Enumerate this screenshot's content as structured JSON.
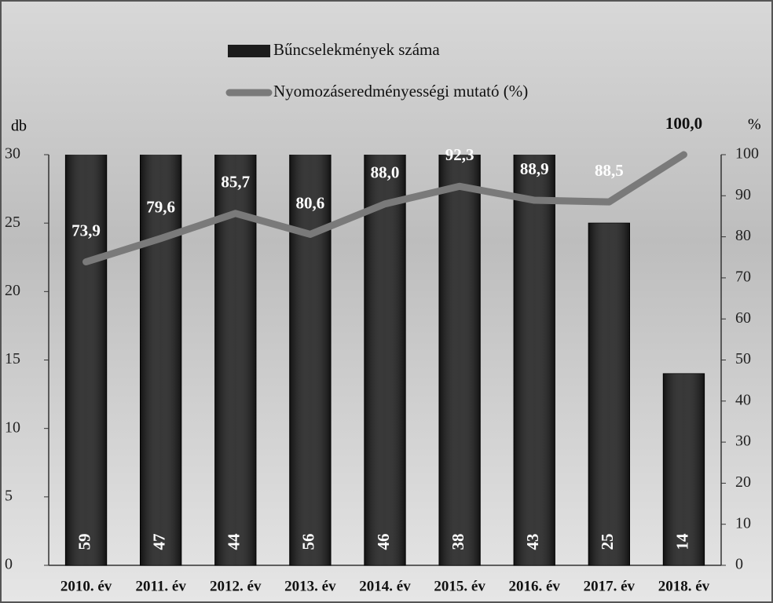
{
  "chart_data": {
    "type": "bar",
    "categories": [
      "2010. év",
      "2011. év",
      "2012. év",
      "2013. év",
      "2014. év",
      "2015. év",
      "2016. év",
      "2017. év",
      "2018. év"
    ],
    "series": [
      {
        "name": "Bűncselekmények száma",
        "type": "bar",
        "color": "#1c1c1c",
        "values": [
          59,
          47,
          44,
          56,
          46,
          38,
          43,
          25,
          14
        ]
      },
      {
        "name": "Nyomozáseredményességi mutató (%)",
        "type": "line",
        "axis": "y2",
        "color": "#7a7a7a",
        "values": [
          73.9,
          79.6,
          85.7,
          80.6,
          88.0,
          92.3,
          88.9,
          88.5,
          100.0
        ],
        "value_labels": [
          "73,9",
          "79,6",
          "85,7",
          "80,6",
          "88,0",
          "92,3",
          "88,9",
          "88,5",
          "100,0"
        ]
      }
    ],
    "y_label": "db",
    "y2_label": "%",
    "ylim": [
      0,
      30
    ],
    "yticks": [
      0,
      5,
      10,
      15,
      20,
      25,
      30
    ],
    "y2lim": [
      0,
      100
    ],
    "y2ticks": [
      0,
      10,
      20,
      30,
      40,
      50,
      60,
      70,
      80,
      90,
      100
    ],
    "legend": "top"
  }
}
